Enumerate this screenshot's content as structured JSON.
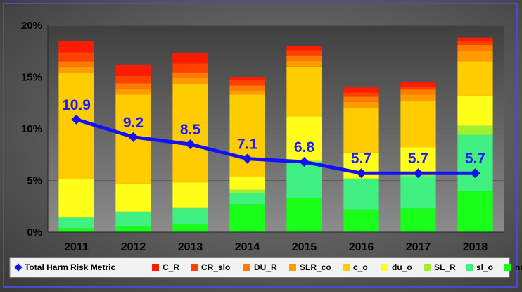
{
  "chart_data": {
    "type": "bar",
    "stacked": true,
    "categories": [
      "2011",
      "2012",
      "2013",
      "2014",
      "2015",
      "2016",
      "2017",
      "2018"
    ],
    "ylim": [
      0,
      20
    ],
    "yticks": [
      0,
      5,
      10,
      15,
      20
    ],
    "ytick_labels": [
      "0%",
      "5%",
      "10%",
      "15%",
      "20%"
    ],
    "grid": true,
    "legend_position": "bottom",
    "series": [
      {
        "name": "nnv",
        "color": "#1aff1a",
        "values": [
          0.4,
          0.6,
          0.8,
          2.7,
          3.3,
          2.2,
          2.3,
          4.0
        ]
      },
      {
        "name": "sl_o",
        "color": "#40f080",
        "values": [
          1.0,
          1.3,
          1.5,
          1.1,
          3.5,
          2.9,
          3.1,
          5.4
        ]
      },
      {
        "name": "SL_R",
        "color": "#9ef030",
        "values": [
          0.1,
          0.1,
          0.1,
          0.3,
          0.1,
          0.1,
          0.1,
          0.9
        ]
      },
      {
        "name": "du_o",
        "color": "#ffff1a",
        "values": [
          3.6,
          2.7,
          2.4,
          1.3,
          4.3,
          2.5,
          2.7,
          2.9
        ]
      },
      {
        "name": "c_o",
        "color": "#ffcc00",
        "values": [
          10.3,
          8.6,
          9.5,
          7.9,
          4.8,
          4.3,
          4.5,
          3.3
        ]
      },
      {
        "name": "SLR_co",
        "color": "#ff9a00",
        "values": [
          0.6,
          0.6,
          0.6,
          0.4,
          0.6,
          0.6,
          0.6,
          1.0
        ]
      },
      {
        "name": "DU_R",
        "color": "#ff7a00",
        "values": [
          0.5,
          0.5,
          0.5,
          0.5,
          0.5,
          0.5,
          0.5,
          0.6
        ]
      },
      {
        "name": "CR_slo",
        "color": "#ff4000",
        "values": [
          0.9,
          0.7,
          0.9,
          0.5,
          0.5,
          0.4,
          0.3,
          0.4
        ]
      },
      {
        "name": "C_R",
        "color": "#ff1a00",
        "values": [
          1.1,
          1.1,
          1.0,
          0.3,
          0.4,
          0.5,
          0.4,
          0.3
        ]
      }
    ],
    "line_series": {
      "name": "Total Harm Risk Metric",
      "color": "#1010ff",
      "values": [
        10.9,
        9.2,
        8.5,
        7.1,
        6.8,
        5.7,
        5.7,
        5.7
      ],
      "labels": [
        "10.9",
        "9.2",
        "8.5",
        "7.1",
        "6.8",
        "5.7",
        "5.7",
        "5.7"
      ]
    },
    "legend_order": [
      "Total Harm Risk Metric",
      "C_R",
      "CR_slo",
      "DU_R",
      "SLR_co",
      "c_o",
      "du_o",
      "SL_R",
      "sl_o",
      "nnv"
    ]
  }
}
